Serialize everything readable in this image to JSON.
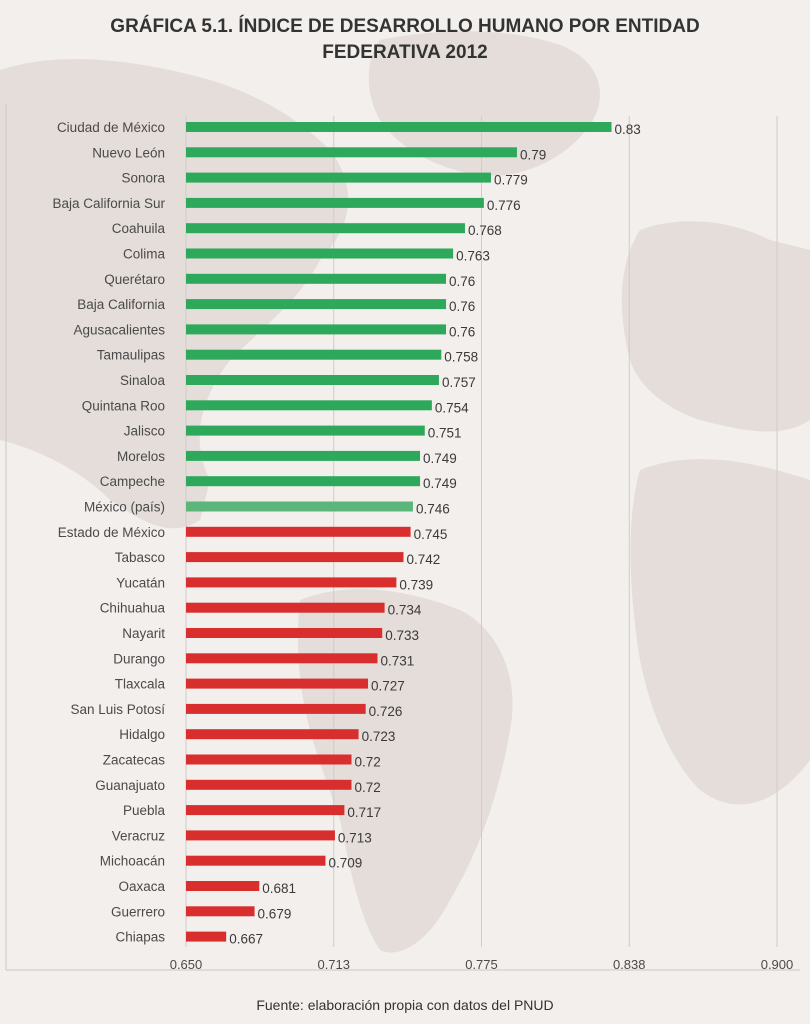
{
  "title_line1": "GRÁFICA 5.1. ÍNDICE DE DESARROLLO HUMANO POR ENTIDAD",
  "title_line2": "FEDERATIVA 2012",
  "source": "Fuente: elaboración propia con datos del PNUD",
  "colors": {
    "above": "#2ea85a",
    "country": "#5cb57a",
    "below": "#d82e2e",
    "background": "#f3efec",
    "map": "#e3dcd8"
  },
  "chart_data": {
    "type": "bar",
    "orientation": "horizontal",
    "xlim": [
      0.65,
      0.9
    ],
    "x_ticks": [
      "0.650",
      "0.713",
      "0.775",
      "0.838",
      "0.900"
    ],
    "grid": true,
    "categories": [
      "Ciudad de México",
      "Nuevo León",
      "Sonora",
      "Baja California Sur",
      "Coahuila",
      "Colima",
      "Querétaro",
      "Baja California",
      "Agusacalientes",
      "Tamaulipas",
      "Sinaloa",
      "Quintana Roo",
      "Jalisco",
      "Morelos",
      "Campeche",
      "México (país)",
      "Estado de México",
      "Tabasco",
      "Yucatán",
      "Chihuahua",
      "Nayarit",
      "Durango",
      "Tlaxcala",
      "San Luis Potosí",
      "Hidalgo",
      "Zacatecas",
      "Guanajuato",
      "Puebla",
      "Veracruz",
      "Michoacán",
      "Oaxaca",
      "Guerrero",
      "Chiapas"
    ],
    "values": [
      0.83,
      0.79,
      0.779,
      0.776,
      0.768,
      0.763,
      0.76,
      0.76,
      0.76,
      0.758,
      0.757,
      0.754,
      0.751,
      0.749,
      0.749,
      0.746,
      0.745,
      0.742,
      0.739,
      0.734,
      0.733,
      0.731,
      0.727,
      0.726,
      0.723,
      0.72,
      0.72,
      0.717,
      0.713,
      0.709,
      0.681,
      0.679,
      0.667
    ],
    "value_labels": [
      "0.83",
      "0.79",
      "0.779",
      "0.776",
      "0.768",
      "0.763",
      "0.76",
      "0.76",
      "0.76",
      "0.758",
      "0.757",
      "0.754",
      "0.751",
      "0.749",
      "0.749",
      "0.746",
      "0.745",
      "0.742",
      "0.739",
      "0.734",
      "0.733",
      "0.731",
      "0.727",
      "0.726",
      "0.723",
      "0.72",
      "0.72",
      "0.717",
      "0.713",
      "0.709",
      "0.681",
      "0.679",
      "0.667"
    ],
    "bar_group": [
      "above",
      "above",
      "above",
      "above",
      "above",
      "above",
      "above",
      "above",
      "above",
      "above",
      "above",
      "above",
      "above",
      "above",
      "above",
      "country",
      "below",
      "below",
      "below",
      "below",
      "below",
      "below",
      "below",
      "below",
      "below",
      "below",
      "below",
      "below",
      "below",
      "below",
      "below",
      "below",
      "below"
    ]
  }
}
